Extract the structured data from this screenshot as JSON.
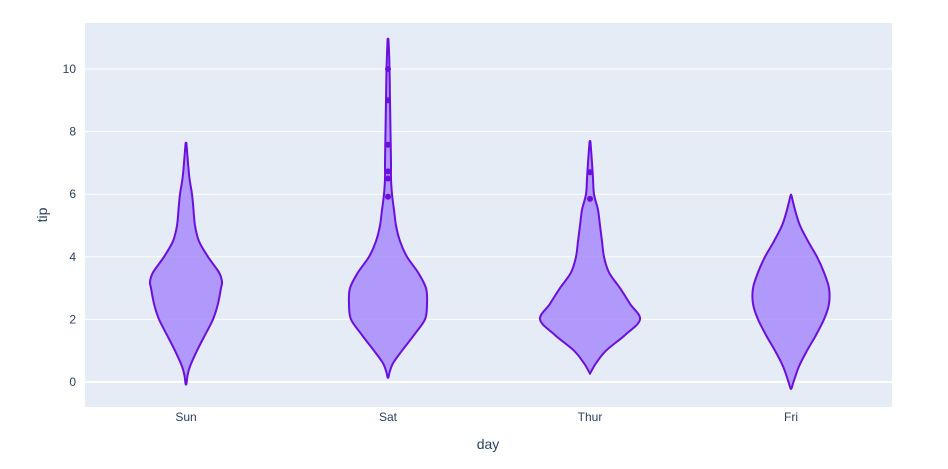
{
  "chart_data": {
    "type": "violin",
    "title": "",
    "xlabel": "day",
    "ylabel": "tip",
    "categories": [
      "Sun",
      "Sat",
      "Thur",
      "Fri"
    ],
    "ylim": [
      -0.8,
      11.5
    ],
    "yticks": [
      0,
      2,
      4,
      6,
      8,
      10
    ],
    "grid": true,
    "colors": {
      "fill": "#a78bfa",
      "fill_opacity": 0.85,
      "line": "#6a0fdf",
      "plot_bg": "#e5ecf6",
      "grid": "#ffffff",
      "text": "#2a3f5f"
    },
    "series": [
      {
        "name": "Sun",
        "min": -0.05,
        "max": 7.6,
        "profile": [
          [
            7.6,
            0.5
          ],
          [
            7.0,
            2
          ],
          [
            6.5,
            3.5
          ],
          [
            6.0,
            6
          ],
          [
            5.5,
            7.5
          ],
          [
            5.0,
            9
          ],
          [
            4.5,
            13
          ],
          [
            4.0,
            22
          ],
          [
            3.5,
            33
          ],
          [
            3.2,
            36
          ],
          [
            3.0,
            35
          ],
          [
            2.5,
            32
          ],
          [
            2.0,
            27
          ],
          [
            1.5,
            19
          ],
          [
            1.0,
            11
          ],
          [
            0.5,
            4
          ],
          [
            0.2,
            1.5
          ],
          [
            -0.05,
            0.5
          ]
        ],
        "points": []
      },
      {
        "name": "Sat",
        "min": 0.15,
        "max": 10.9,
        "profile": [
          [
            10.9,
            0.5
          ],
          [
            10.0,
            1.5
          ],
          [
            9.0,
            2
          ],
          [
            8.0,
            2.5
          ],
          [
            7.0,
            3
          ],
          [
            6.5,
            3
          ],
          [
            6.0,
            4
          ],
          [
            5.5,
            6
          ],
          [
            5.0,
            8
          ],
          [
            4.5,
            12
          ],
          [
            4.0,
            19
          ],
          [
            3.5,
            30
          ],
          [
            3.0,
            38
          ],
          [
            2.5,
            39
          ],
          [
            2.0,
            37
          ],
          [
            1.5,
            26
          ],
          [
            1.0,
            14
          ],
          [
            0.6,
            5
          ],
          [
            0.3,
            1.5
          ],
          [
            0.15,
            0.5
          ]
        ],
        "points": [
          10.0,
          9.0,
          7.58,
          6.73,
          6.5,
          5.92
        ]
      },
      {
        "name": "Thur",
        "min": 0.3,
        "max": 7.65,
        "profile": [
          [
            7.65,
            0.5
          ],
          [
            7.0,
            2
          ],
          [
            6.5,
            3
          ],
          [
            6.0,
            4
          ],
          [
            5.5,
            8
          ],
          [
            5.0,
            10
          ],
          [
            4.5,
            12
          ],
          [
            4.0,
            14
          ],
          [
            3.5,
            19
          ],
          [
            3.0,
            30
          ],
          [
            2.5,
            40
          ],
          [
            2.0,
            50
          ],
          [
            1.5,
            35
          ],
          [
            1.0,
            16
          ],
          [
            0.6,
            6
          ],
          [
            0.3,
            0.5
          ]
        ],
        "points": [
          6.7,
          5.85
        ]
      },
      {
        "name": "Fri",
        "min": -0.2,
        "max": 5.95,
        "profile": [
          [
            5.95,
            0.5
          ],
          [
            5.5,
            4
          ],
          [
            5.0,
            9
          ],
          [
            4.5,
            17
          ],
          [
            4.0,
            26
          ],
          [
            3.5,
            33
          ],
          [
            3.0,
            38
          ],
          [
            2.5,
            38
          ],
          [
            2.0,
            33
          ],
          [
            1.5,
            25
          ],
          [
            1.0,
            16
          ],
          [
            0.5,
            8
          ],
          [
            0.0,
            2.5
          ],
          [
            -0.2,
            0.5
          ]
        ],
        "points": []
      }
    ]
  },
  "axes": {
    "x_title": "day",
    "y_title": "tip",
    "x_ticks": [
      "Sun",
      "Sat",
      "Thur",
      "Fri"
    ],
    "y_ticks": [
      "0",
      "2",
      "4",
      "6",
      "8",
      "10"
    ]
  }
}
